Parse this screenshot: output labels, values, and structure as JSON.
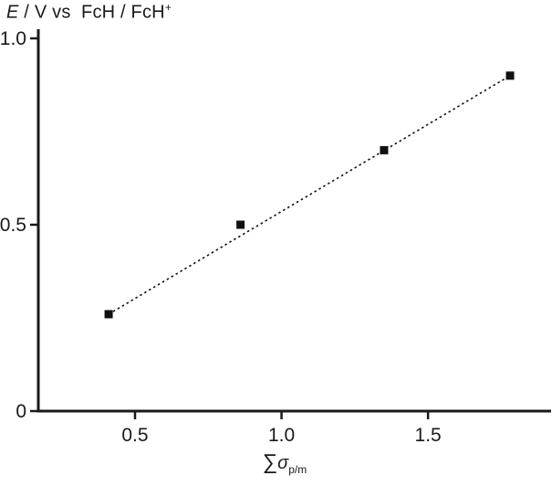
{
  "chart_data": {
    "type": "scatter",
    "title": "E / V vs  FcH / FcH+",
    "ylabel_parts": {
      "var": "E",
      "rest": " / V vs  FcH / FcH",
      "sup": "+"
    },
    "xlabel": "∑σp/m",
    "xlabel_parts": {
      "sum": "∑",
      "sigma": "σ",
      "sub": "p/m"
    },
    "points": [
      [
        0.41,
        0.26
      ],
      [
        0.86,
        0.5
      ],
      [
        1.35,
        0.7
      ],
      [
        1.78,
        0.9
      ]
    ],
    "trendline": {
      "style": "dotted",
      "from": [
        0.41,
        0.26
      ],
      "to": [
        1.78,
        0.9
      ]
    },
    "xticks": [
      0.5,
      1.0,
      1.5
    ],
    "xtick_labels": [
      "0.5",
      "1.0",
      "1.5"
    ],
    "yticks": [
      0,
      0.5,
      1.0
    ],
    "ytick_labels": [
      "0",
      "0.5",
      "1.0"
    ],
    "xlim": [
      0.17,
      1.92
    ],
    "ylim": [
      0,
      1.0
    ],
    "grid": false,
    "legend": false,
    "marker": "square",
    "colors": {
      "axis": "#1a1a1a",
      "marker": "#111111",
      "line": "#111111",
      "text": "#1a1a1a"
    }
  }
}
